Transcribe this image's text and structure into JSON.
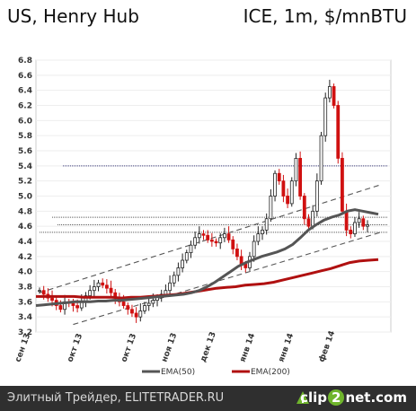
{
  "chart_data": {
    "type": "candlestick",
    "title_left": "US, Henry Hub",
    "title_right": "ICE, 1m, $/mnBTU",
    "ylim": [
      3.2,
      6.8
    ],
    "yticks": [
      "3.2",
      "3.4",
      "3.6",
      "3.8",
      "4.0",
      "4.2",
      "4.4",
      "4.6",
      "4.8",
      "5.0",
      "5.2",
      "5.4",
      "5.6",
      "5.8",
      "6.0",
      "6.2",
      "6.4",
      "6.6",
      "6.8"
    ],
    "xticks": [
      "сен 13",
      "окт 13",
      "окт 13",
      "ноя 13",
      "дек 13",
      "янв 14",
      "янв 14",
      "фев 14"
    ],
    "legend": [
      {
        "name": "EMA(50)",
        "color": "#555555"
      },
      {
        "name": "EMA(200)",
        "color": "#b01010"
      }
    ],
    "candles": [
      3.75,
      3.7,
      3.65,
      3.62,
      3.55,
      3.5,
      3.6,
      3.58,
      3.55,
      3.52,
      3.6,
      3.68,
      3.75,
      3.8,
      3.85,
      3.82,
      3.78,
      3.72,
      3.65,
      3.6,
      3.55,
      3.5,
      3.45,
      3.4,
      3.48,
      3.55,
      3.58,
      3.62,
      3.66,
      3.7,
      3.75,
      3.85,
      3.95,
      4.05,
      4.15,
      4.25,
      4.35,
      4.45,
      4.5,
      4.48,
      4.42,
      4.4,
      4.38,
      4.45,
      4.5,
      4.42,
      4.3,
      4.2,
      4.1,
      4.05,
      4.2,
      4.4,
      4.5,
      4.55,
      4.7,
      5.0,
      5.3,
      5.2,
      5.0,
      4.9,
      5.2,
      5.5,
      5.0,
      4.7,
      4.6,
      4.8,
      5.2,
      5.8,
      6.3,
      6.45,
      6.2,
      5.5,
      4.8,
      4.55,
      4.5,
      4.65,
      4.7,
      4.6,
      4.62
    ],
    "ema50": [
      3.55,
      3.56,
      3.57,
      3.58,
      3.59,
      3.6,
      3.6,
      3.6,
      3.61,
      3.61,
      3.62,
      3.62,
      3.63,
      3.64,
      3.65,
      3.66,
      3.67,
      3.68,
      3.69,
      3.7,
      3.72,
      3.75,
      3.8,
      3.86,
      3.93,
      4.0,
      4.07,
      4.12,
      4.16,
      4.2,
      4.23,
      4.26,
      4.3,
      4.36,
      4.45,
      4.55,
      4.62,
      4.68,
      4.72,
      4.75,
      4.8,
      4.82,
      4.8,
      4.78,
      4.76
    ],
    "ema200": [
      3.67,
      3.67,
      3.67,
      3.67,
      3.67,
      3.66,
      3.66,
      3.66,
      3.66,
      3.65,
      3.66,
      3.66,
      3.67,
      3.68,
      3.69,
      3.7,
      3.72,
      3.74,
      3.76,
      3.78,
      3.79,
      3.8,
      3.82,
      3.83,
      3.84,
      3.86,
      3.89,
      3.92,
      3.95,
      3.98,
      4.01,
      4.04,
      4.08,
      4.12,
      4.14,
      4.15,
      4.16
    ],
    "channel_upper": [
      [
        0,
        3.72
      ],
      [
        79,
        5.15
      ]
    ],
    "channel_lower": [
      [
        8,
        3.3
      ],
      [
        79,
        4.52
      ]
    ],
    "h_levels": [
      5.4,
      4.72,
      4.62,
      4.52
    ]
  },
  "footer": {
    "left_text": "Элитный Трейдер, ELITETRADER.RU",
    "logo_text_a": "clip",
    "logo_text_b": "2",
    "logo_text_c": "net.com"
  }
}
